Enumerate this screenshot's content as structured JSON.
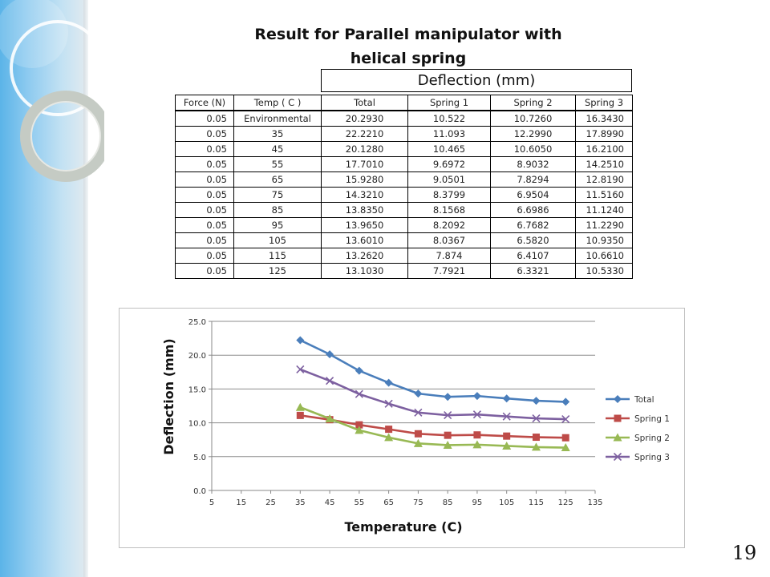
{
  "slide": {
    "title_line1": "Result for Parallel manipulator with",
    "title_line2": "helical spring",
    "page_number": "19"
  },
  "table": {
    "group_header": "Deflection (mm)",
    "headers": [
      "Force (N)",
      "Temp ( C )",
      "Total",
      "Spring 1",
      "Spring 2",
      "Spring 3"
    ],
    "rows": [
      [
        "0.05",
        "Environmental",
        "20.2930",
        "10.522",
        "10.7260",
        "16.3430"
      ],
      [
        "0.05",
        "35",
        "22.2210",
        "11.093",
        "12.2990",
        "17.8990"
      ],
      [
        "0.05",
        "45",
        "20.1280",
        "10.465",
        "10.6050",
        "16.2100"
      ],
      [
        "0.05",
        "55",
        "17.7010",
        "9.6972",
        "8.9032",
        "14.2510"
      ],
      [
        "0.05",
        "65",
        "15.9280",
        "9.0501",
        "7.8294",
        "12.8190"
      ],
      [
        "0.05",
        "75",
        "14.3210",
        "8.3799",
        "6.9504",
        "11.5160"
      ],
      [
        "0.05",
        "85",
        "13.8350",
        "8.1568",
        "6.6986",
        "11.1240"
      ],
      [
        "0.05",
        "95",
        "13.9650",
        "8.2092",
        "6.7682",
        "11.2290"
      ],
      [
        "0.05",
        "105",
        "13.6010",
        "8.0367",
        "6.5820",
        "10.9350"
      ],
      [
        "0.05",
        "115",
        "13.2620",
        "7.874",
        "6.4107",
        "10.6610"
      ],
      [
        "0.05",
        "125",
        "13.1030",
        "7.7921",
        "6.3321",
        "10.5330"
      ]
    ]
  },
  "chart_data": {
    "type": "line",
    "title": "",
    "xlabel": "Temperature (C)",
    "ylabel": "Deflection (mm)",
    "xlim": [
      5,
      135
    ],
    "ylim": [
      0,
      25
    ],
    "x_ticks": [
      5,
      15,
      25,
      35,
      45,
      55,
      65,
      75,
      85,
      95,
      105,
      115,
      125,
      135
    ],
    "y_ticks": [
      0,
      5,
      10,
      15,
      20,
      25
    ],
    "y_tick_labels": [
      "0.0",
      "5.0",
      "10.0",
      "15.0",
      "20.0",
      "25.0"
    ],
    "grid": "horizontal",
    "legend_position": "right",
    "x": [
      35,
      45,
      55,
      65,
      75,
      85,
      95,
      105,
      115,
      125
    ],
    "series": [
      {
        "name": "Total",
        "color": "#4a7ebb",
        "marker": "diamond",
        "values": [
          22.221,
          20.128,
          17.701,
          15.928,
          14.321,
          13.835,
          13.965,
          13.601,
          13.262,
          13.103
        ]
      },
      {
        "name": "Spring 1",
        "color": "#be4b48",
        "marker": "square",
        "values": [
          11.093,
          10.465,
          9.6972,
          9.0501,
          8.3799,
          8.1568,
          8.2092,
          8.0367,
          7.874,
          7.7921
        ]
      },
      {
        "name": "Spring 2",
        "color": "#98b954",
        "marker": "triangle",
        "values": [
          12.299,
          10.605,
          8.9032,
          7.8294,
          6.9504,
          6.6986,
          6.7682,
          6.582,
          6.4107,
          6.3321
        ]
      },
      {
        "name": "Spring 3",
        "color": "#7d60a0",
        "marker": "x",
        "values": [
          17.899,
          16.21,
          14.251,
          12.819,
          11.516,
          11.124,
          11.229,
          10.935,
          10.661,
          10.533
        ]
      }
    ]
  }
}
